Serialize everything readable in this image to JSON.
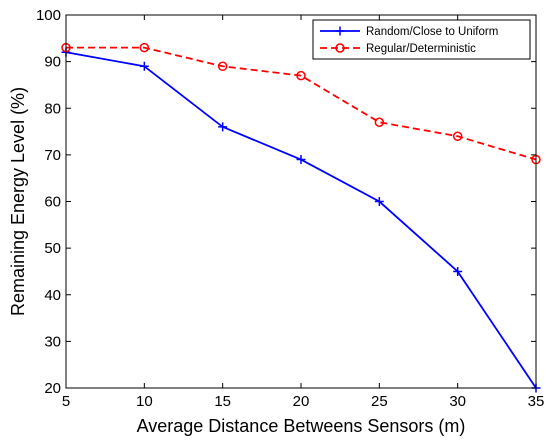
{
  "chart_data": {
    "type": "line",
    "title": "",
    "xlabel": "Average Distance Betweens Sensors (m)",
    "ylabel": "Remaining Energy Level (%)",
    "x": [
      5,
      10,
      15,
      20,
      25,
      30,
      35
    ],
    "xlim": [
      5,
      35
    ],
    "ylim": [
      20,
      100
    ],
    "xticks": [
      5,
      10,
      15,
      20,
      25,
      30,
      35
    ],
    "yticks": [
      20,
      30,
      40,
      50,
      60,
      70,
      80,
      90,
      100
    ],
    "grid": false,
    "legend_position": "top-right",
    "series": [
      {
        "name": "Random/Close to Uniform",
        "values": [
          92,
          89,
          76,
          69,
          60,
          45,
          20
        ],
        "color": "#0000ff",
        "line_style": "solid",
        "marker": "plus"
      },
      {
        "name": "Regular/Deterministic",
        "values": [
          93,
          93,
          89,
          87,
          77,
          74,
          69
        ],
        "color": "#ff0000",
        "line_style": "dashed",
        "marker": "circle"
      }
    ]
  }
}
